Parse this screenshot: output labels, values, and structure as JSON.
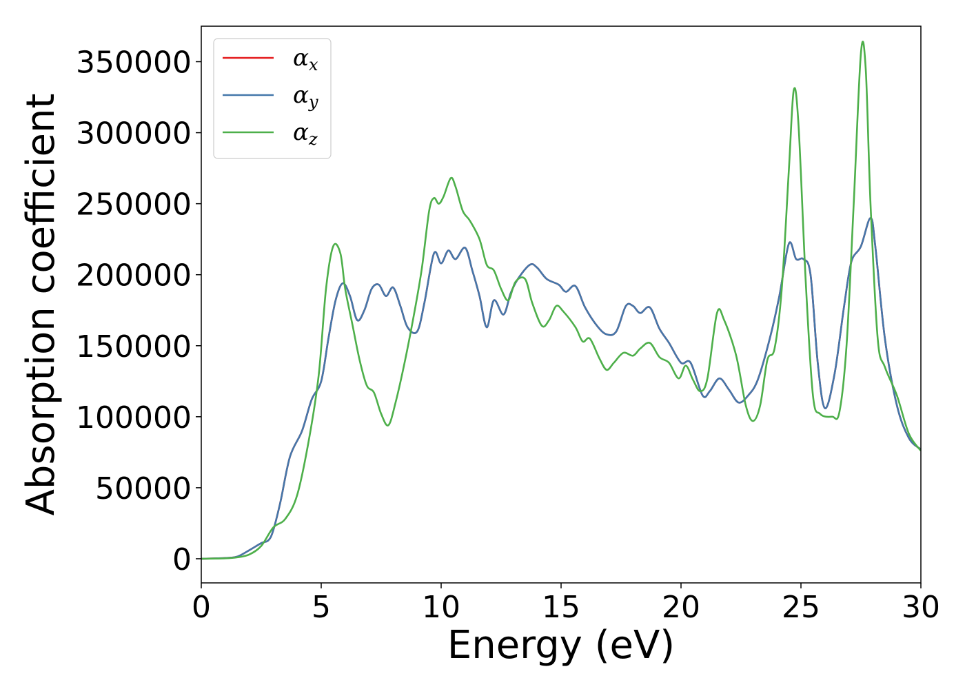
{
  "chart_data": {
    "type": "line",
    "title": "",
    "xlabel": "Energy (eV)",
    "ylabel": "Absorption coefficient",
    "xlim": [
      0,
      30
    ],
    "ylim": [
      -17000,
      375000
    ],
    "xticks": [
      0,
      5,
      10,
      15,
      20,
      25,
      30
    ],
    "yticks": [
      0,
      50000,
      100000,
      150000,
      200000,
      250000,
      300000,
      350000
    ],
    "grid": false,
    "legend_position": "top-left",
    "series": [
      {
        "name": "α_x",
        "legend_base": "α",
        "legend_sub": "x",
        "color": "#e41a1c",
        "points": [
          [
            0,
            0
          ],
          [
            1,
            500
          ],
          [
            1.5,
            1500
          ],
          [
            2,
            6000
          ],
          [
            2.5,
            11000
          ],
          [
            2.8,
            13000
          ],
          [
            3,
            20000
          ],
          [
            3.3,
            40000
          ],
          [
            3.7,
            72000
          ],
          [
            4.2,
            90000
          ],
          [
            4.6,
            112000
          ],
          [
            5,
            125000
          ],
          [
            5.3,
            155000
          ],
          [
            5.6,
            182000
          ],
          [
            5.9,
            194000
          ],
          [
            6.2,
            185000
          ],
          [
            6.5,
            168000
          ],
          [
            6.8,
            175000
          ],
          [
            7.1,
            190000
          ],
          [
            7.4,
            193000
          ],
          [
            7.7,
            185000
          ],
          [
            8,
            191000
          ],
          [
            8.3,
            178000
          ],
          [
            8.6,
            163000
          ],
          [
            9,
            160000
          ],
          [
            9.3,
            180000
          ],
          [
            9.7,
            215000
          ],
          [
            10,
            208000
          ],
          [
            10.3,
            217000
          ],
          [
            10.6,
            211000
          ],
          [
            11,
            219000
          ],
          [
            11.3,
            203000
          ],
          [
            11.6,
            185000
          ],
          [
            11.9,
            163000
          ],
          [
            12.2,
            182000
          ],
          [
            12.6,
            172000
          ],
          [
            12.9,
            187000
          ],
          [
            13.2,
            197000
          ],
          [
            13.7,
            207000
          ],
          [
            14,
            205000
          ],
          [
            14.4,
            197000
          ],
          [
            14.9,
            193000
          ],
          [
            15.2,
            188000
          ],
          [
            15.6,
            192000
          ],
          [
            16,
            177000
          ],
          [
            16.5,
            164000
          ],
          [
            16.9,
            158000
          ],
          [
            17.3,
            160000
          ],
          [
            17.7,
            178000
          ],
          [
            18,
            178000
          ],
          [
            18.3,
            173000
          ],
          [
            18.7,
            177000
          ],
          [
            19.1,
            162000
          ],
          [
            19.5,
            152000
          ],
          [
            20,
            138000
          ],
          [
            20.4,
            138000
          ],
          [
            20.9,
            115000
          ],
          [
            21.2,
            118000
          ],
          [
            21.6,
            127000
          ],
          [
            22,
            119000
          ],
          [
            22.4,
            110000
          ],
          [
            22.8,
            115000
          ],
          [
            23.2,
            126000
          ],
          [
            23.7,
            155000
          ],
          [
            24.1,
            185000
          ],
          [
            24.5,
            222000
          ],
          [
            24.8,
            211000
          ],
          [
            25.1,
            211000
          ],
          [
            25.4,
            200000
          ],
          [
            25.7,
            138000
          ],
          [
            26,
            106000
          ],
          [
            26.4,
            130000
          ],
          [
            26.8,
            178000
          ],
          [
            27.1,
            209000
          ],
          [
            27.5,
            220000
          ],
          [
            27.9,
            240000
          ],
          [
            28.1,
            220000
          ],
          [
            28.5,
            155000
          ],
          [
            29,
            108000
          ],
          [
            29.5,
            85000
          ],
          [
            30,
            77000
          ]
        ]
      },
      {
        "name": "α_y",
        "legend_base": "α",
        "legend_sub": "y",
        "color": "#4477aa",
        "points": [
          [
            0,
            0
          ],
          [
            1,
            500
          ],
          [
            1.5,
            1500
          ],
          [
            2,
            6000
          ],
          [
            2.5,
            11000
          ],
          [
            2.8,
            13000
          ],
          [
            3,
            20000
          ],
          [
            3.3,
            40000
          ],
          [
            3.7,
            72000
          ],
          [
            4.2,
            90000
          ],
          [
            4.6,
            112000
          ],
          [
            5,
            125000
          ],
          [
            5.3,
            155000
          ],
          [
            5.6,
            182000
          ],
          [
            5.9,
            194000
          ],
          [
            6.2,
            185000
          ],
          [
            6.5,
            168000
          ],
          [
            6.8,
            175000
          ],
          [
            7.1,
            190000
          ],
          [
            7.4,
            193000
          ],
          [
            7.7,
            185000
          ],
          [
            8,
            191000
          ],
          [
            8.3,
            178000
          ],
          [
            8.6,
            163000
          ],
          [
            9,
            160000
          ],
          [
            9.3,
            180000
          ],
          [
            9.7,
            215000
          ],
          [
            10,
            208000
          ],
          [
            10.3,
            217000
          ],
          [
            10.6,
            211000
          ],
          [
            11,
            219000
          ],
          [
            11.3,
            203000
          ],
          [
            11.6,
            185000
          ],
          [
            11.9,
            163000
          ],
          [
            12.2,
            182000
          ],
          [
            12.6,
            172000
          ],
          [
            12.9,
            187000
          ],
          [
            13.2,
            197000
          ],
          [
            13.7,
            207000
          ],
          [
            14,
            205000
          ],
          [
            14.4,
            197000
          ],
          [
            14.9,
            193000
          ],
          [
            15.2,
            188000
          ],
          [
            15.6,
            192000
          ],
          [
            16,
            177000
          ],
          [
            16.5,
            164000
          ],
          [
            16.9,
            158000
          ],
          [
            17.3,
            160000
          ],
          [
            17.7,
            178000
          ],
          [
            18,
            178000
          ],
          [
            18.3,
            173000
          ],
          [
            18.7,
            177000
          ],
          [
            19.1,
            162000
          ],
          [
            19.5,
            152000
          ],
          [
            20,
            138000
          ],
          [
            20.4,
            138000
          ],
          [
            20.9,
            115000
          ],
          [
            21.2,
            118000
          ],
          [
            21.6,
            127000
          ],
          [
            22,
            119000
          ],
          [
            22.4,
            110000
          ],
          [
            22.8,
            115000
          ],
          [
            23.2,
            126000
          ],
          [
            23.7,
            155000
          ],
          [
            24.1,
            185000
          ],
          [
            24.5,
            222000
          ],
          [
            24.8,
            211000
          ],
          [
            25.1,
            211000
          ],
          [
            25.4,
            200000
          ],
          [
            25.7,
            138000
          ],
          [
            26,
            106000
          ],
          [
            26.4,
            130000
          ],
          [
            26.8,
            178000
          ],
          [
            27.1,
            209000
          ],
          [
            27.5,
            220000
          ],
          [
            27.9,
            240000
          ],
          [
            28.1,
            220000
          ],
          [
            28.5,
            155000
          ],
          [
            29,
            108000
          ],
          [
            29.5,
            85000
          ],
          [
            30,
            77000
          ]
        ]
      },
      {
        "name": "α_z",
        "legend_base": "α",
        "legend_sub": "z",
        "color": "#4daf4a",
        "points": [
          [
            0,
            0
          ],
          [
            1,
            300
          ],
          [
            1.5,
            1000
          ],
          [
            2,
            3000
          ],
          [
            2.5,
            9000
          ],
          [
            3,
            22000
          ],
          [
            3.5,
            28000
          ],
          [
            4,
            45000
          ],
          [
            4.5,
            85000
          ],
          [
            4.9,
            130000
          ],
          [
            5.2,
            190000
          ],
          [
            5.5,
            220000
          ],
          [
            5.8,
            215000
          ],
          [
            6,
            190000
          ],
          [
            6.3,
            165000
          ],
          [
            6.6,
            140000
          ],
          [
            6.9,
            122000
          ],
          [
            7.2,
            117000
          ],
          [
            7.5,
            102000
          ],
          [
            7.8,
            94000
          ],
          [
            8.1,
            110000
          ],
          [
            8.5,
            140000
          ],
          [
            8.9,
            175000
          ],
          [
            9.2,
            205000
          ],
          [
            9.5,
            245000
          ],
          [
            9.7,
            254000
          ],
          [
            9.9,
            250000
          ],
          [
            10.1,
            255000
          ],
          [
            10.4,
            268000
          ],
          [
            10.6,
            262000
          ],
          [
            10.9,
            245000
          ],
          [
            11.2,
            238000
          ],
          [
            11.6,
            225000
          ],
          [
            11.9,
            207000
          ],
          [
            12.2,
            203000
          ],
          [
            12.5,
            190000
          ],
          [
            12.8,
            182000
          ],
          [
            13.1,
            195000
          ],
          [
            13.5,
            197000
          ],
          [
            13.8,
            180000
          ],
          [
            14.2,
            164000
          ],
          [
            14.5,
            168000
          ],
          [
            14.8,
            178000
          ],
          [
            15.1,
            174000
          ],
          [
            15.6,
            163000
          ],
          [
            15.9,
            153000
          ],
          [
            16.2,
            155000
          ],
          [
            16.6,
            141000
          ],
          [
            16.9,
            133000
          ],
          [
            17.2,
            138000
          ],
          [
            17.6,
            145000
          ],
          [
            18,
            143000
          ],
          [
            18.3,
            148000
          ],
          [
            18.7,
            152000
          ],
          [
            19.1,
            142000
          ],
          [
            19.5,
            138000
          ],
          [
            19.9,
            127000
          ],
          [
            20.2,
            136000
          ],
          [
            20.5,
            126000
          ],
          [
            20.8,
            118000
          ],
          [
            21.1,
            127000
          ],
          [
            21.5,
            173000
          ],
          [
            21.8,
            168000
          ],
          [
            22.3,
            143000
          ],
          [
            22.7,
            108000
          ],
          [
            23,
            97000
          ],
          [
            23.3,
            108000
          ],
          [
            23.6,
            140000
          ],
          [
            23.9,
            148000
          ],
          [
            24.2,
            190000
          ],
          [
            24.5,
            275000
          ],
          [
            24.7,
            330000
          ],
          [
            24.9,
            305000
          ],
          [
            25.2,
            195000
          ],
          [
            25.5,
            115000
          ],
          [
            25.8,
            102000
          ],
          [
            26.3,
            100000
          ],
          [
            26.6,
            103000
          ],
          [
            26.9,
            150000
          ],
          [
            27.2,
            250000
          ],
          [
            27.5,
            356000
          ],
          [
            27.7,
            345000
          ],
          [
            27.9,
            250000
          ],
          [
            28.2,
            155000
          ],
          [
            28.5,
            135000
          ],
          [
            29,
            115000
          ],
          [
            29.5,
            88000
          ],
          [
            30,
            76000
          ]
        ]
      }
    ]
  }
}
